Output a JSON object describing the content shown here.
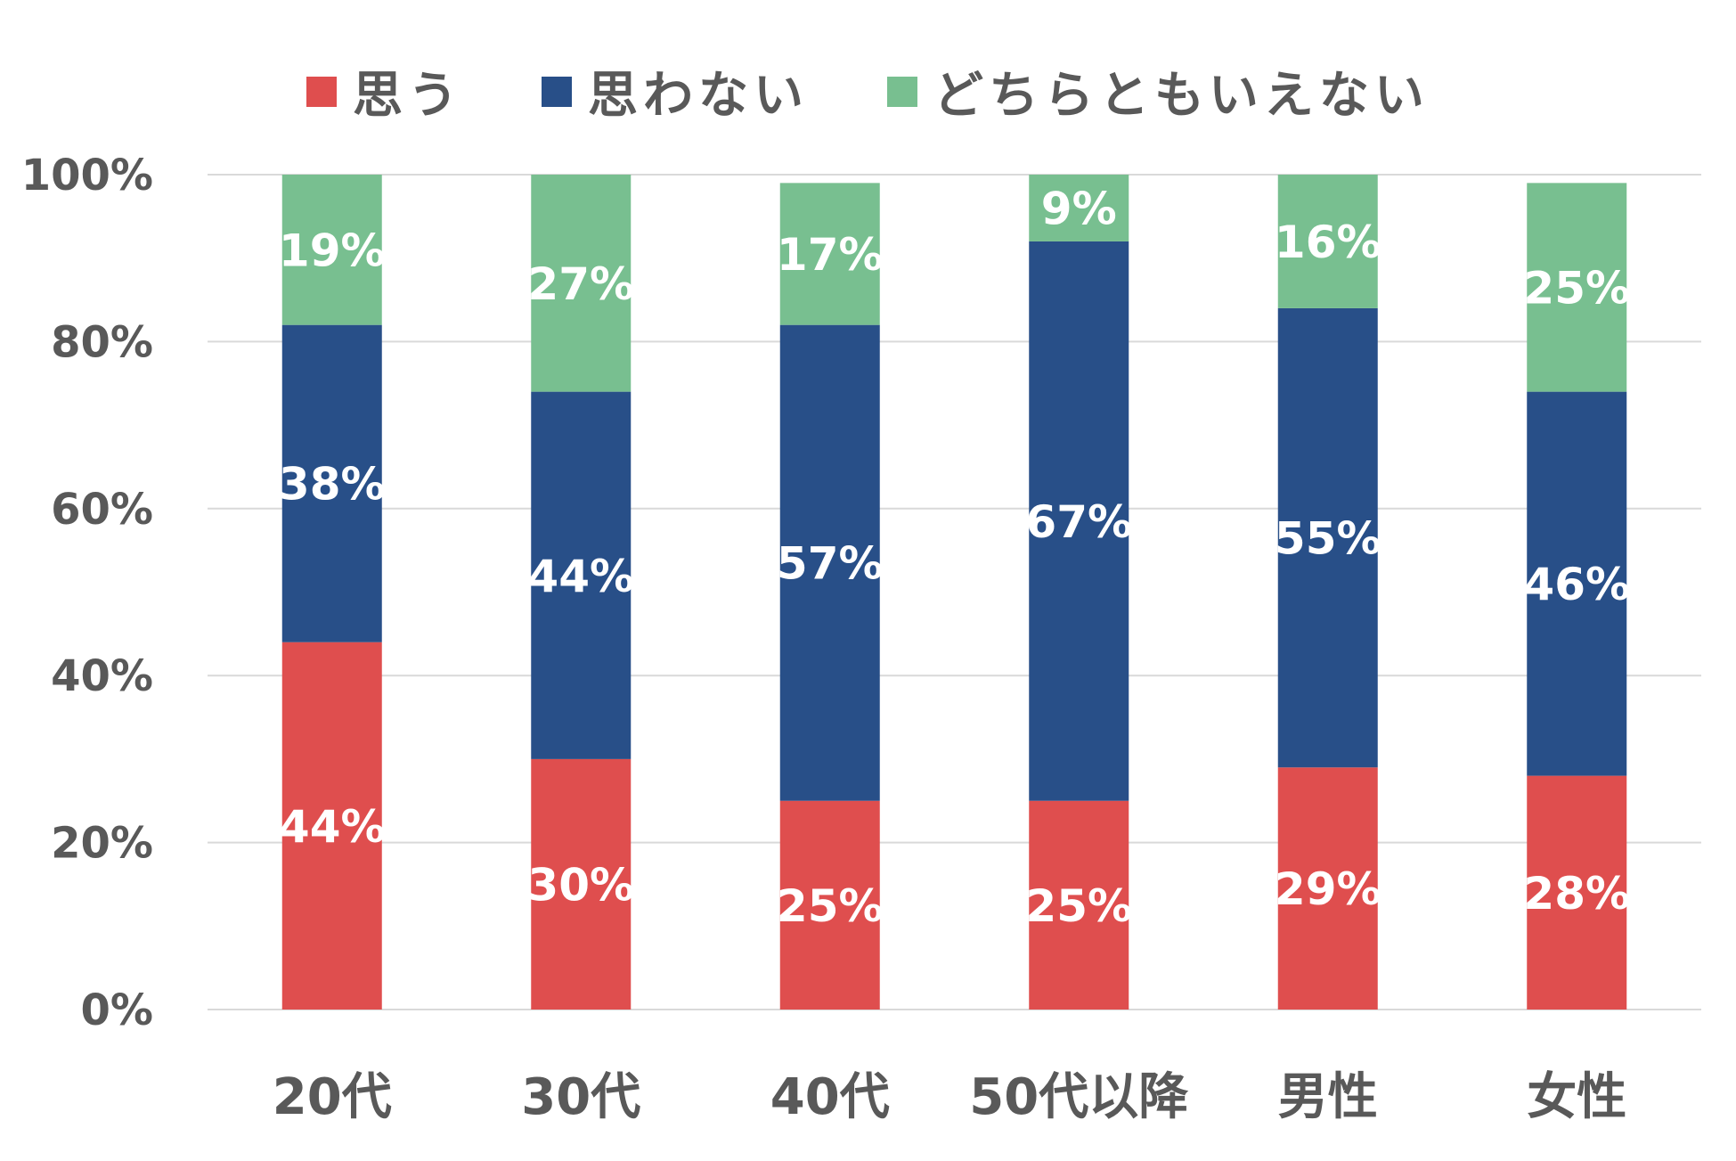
{
  "chart_data": {
    "type": "bar",
    "stacked": true,
    "categories": [
      "20代",
      "30代",
      "40代",
      "50代以降",
      "男性",
      "女性"
    ],
    "series": [
      {
        "name": "思う",
        "color": "#DF4E4E",
        "values": [
          44,
          30,
          25,
          25,
          29,
          28
        ],
        "labels": [
          "44%",
          "30%",
          "25%",
          "25%",
          "29%",
          "28%"
        ]
      },
      {
        "name": "思わない",
        "color": "#284F88",
        "values": [
          38,
          44,
          57,
          67,
          55,
          46
        ],
        "labels": [
          "38%",
          "44%",
          "57%",
          "67%",
          "55%",
          "46%"
        ]
      },
      {
        "name": "どちらともいえない",
        "color": "#78BF90",
        "values": [
          19,
          27,
          17,
          9,
          16,
          25
        ],
        "labels": [
          "19%",
          "27%",
          "17%",
          "9%",
          "16%",
          "25%"
        ]
      }
    ],
    "ylim": [
      0,
      100
    ],
    "yticks": [
      "0%",
      "20%",
      "40%",
      "60%",
      "80%",
      "100%"
    ],
    "grid": true,
    "legend": "top",
    "title": "",
    "xlabel": "",
    "ylabel": ""
  }
}
